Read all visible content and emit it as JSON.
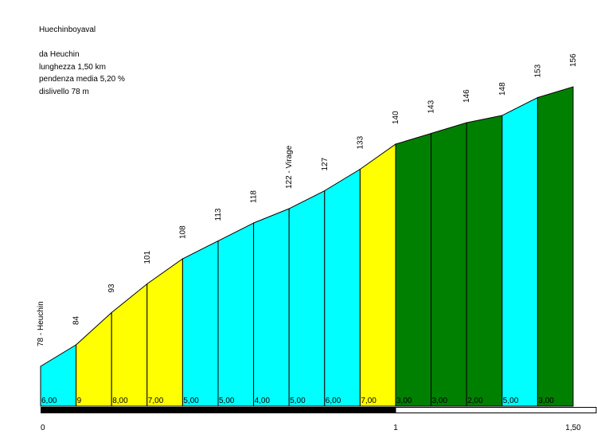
{
  "header": {
    "title": "Huechinboyaval",
    "start": "da Heuchin",
    "length": "lunghezza 1,50 km",
    "avg_grade": "pendenza media 5,20 %",
    "elevation_gain": "dislivello 78 m"
  },
  "colors": {
    "cyan": "#00ffff",
    "yellow": "#ffff00",
    "green": "#008000",
    "bar": "#000000"
  },
  "chart_data": {
    "type": "area",
    "title": "Huechinboyaval",
    "xlabel": "",
    "ylabel": "",
    "xlim": [
      0,
      1.5
    ],
    "x_ticks": [
      {
        "value": 0,
        "label": "0"
      },
      {
        "value": 1,
        "label": "1"
      },
      {
        "value": 1.5,
        "label": "1,50"
      }
    ],
    "points": [
      {
        "x": 0.0,
        "y": 78,
        "label": "78 - Heuchin"
      },
      {
        "x": 0.1,
        "y": 84,
        "label": "84"
      },
      {
        "x": 0.2,
        "y": 93,
        "label": "93"
      },
      {
        "x": 0.3,
        "y": 101,
        "label": "101"
      },
      {
        "x": 0.4,
        "y": 108,
        "label": "108"
      },
      {
        "x": 0.5,
        "y": 113,
        "label": "113"
      },
      {
        "x": 0.6,
        "y": 118,
        "label": "118"
      },
      {
        "x": 0.7,
        "y": 122,
        "label": "122 - Virage"
      },
      {
        "x": 0.8,
        "y": 127,
        "label": "127"
      },
      {
        "x": 0.9,
        "y": 133,
        "label": "133"
      },
      {
        "x": 1.0,
        "y": 140,
        "label": "140"
      },
      {
        "x": 1.1,
        "y": 143,
        "label": "143"
      },
      {
        "x": 1.2,
        "y": 146,
        "label": "146"
      },
      {
        "x": 1.3,
        "y": 148,
        "label": "148"
      },
      {
        "x": 1.4,
        "y": 153,
        "label": "153"
      },
      {
        "x": 1.5,
        "y": 156,
        "label": "156"
      }
    ],
    "segments": [
      {
        "grade": "6,00",
        "color": "cyan"
      },
      {
        "grade": "9",
        "color": "yellow"
      },
      {
        "grade": "8,00",
        "color": "yellow"
      },
      {
        "grade": "7,00",
        "color": "yellow"
      },
      {
        "grade": "5,00",
        "color": "cyan"
      },
      {
        "grade": "5,00",
        "color": "cyan"
      },
      {
        "grade": "4,00",
        "color": "cyan"
      },
      {
        "grade": "5,00",
        "color": "cyan"
      },
      {
        "grade": "6,00",
        "color": "cyan"
      },
      {
        "grade": "7,00",
        "color": "yellow"
      },
      {
        "grade": "3,00",
        "color": "green"
      },
      {
        "grade": "3,00",
        "color": "green"
      },
      {
        "grade": "2,00",
        "color": "green"
      },
      {
        "grade": "5,00",
        "color": "cyan"
      },
      {
        "grade": "3,00",
        "color": "green"
      }
    ],
    "km_bar": {
      "filled_until": 1
    }
  }
}
